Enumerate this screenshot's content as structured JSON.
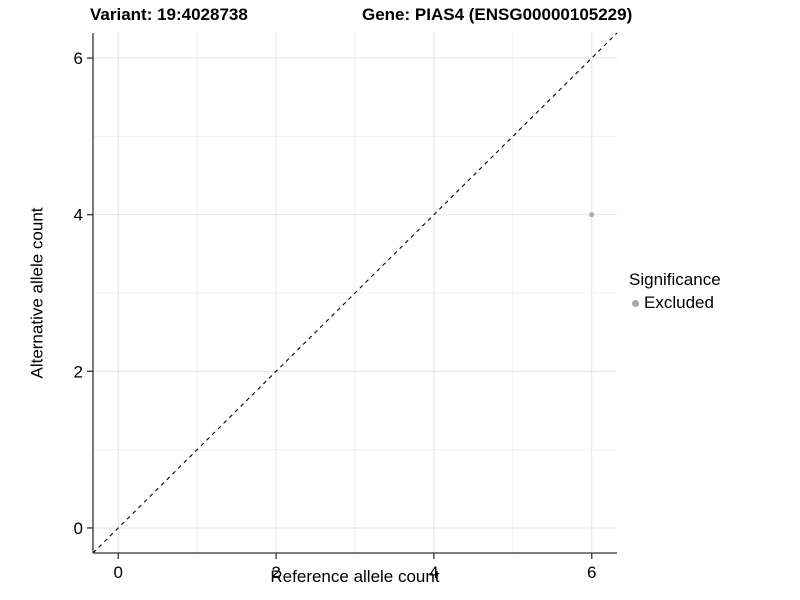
{
  "chart_data": {
    "type": "scatter",
    "titles": {
      "left": "Variant: 19:4028738",
      "right": "Gene: PIAS4 (ENSG00000105229)"
    },
    "xlabel": "Reference allele count",
    "ylabel": "Alternative allele count",
    "xlim": [
      -0.32,
      6.32
    ],
    "ylim": [
      -0.32,
      6.32
    ],
    "xticks": [
      0,
      2,
      4,
      6
    ],
    "yticks": [
      0,
      2,
      4,
      6
    ],
    "grid": {
      "on": true,
      "every": 1,
      "major_color": "#e5e5e5",
      "minor_color": "#f0f0f0"
    },
    "axis_style": {
      "line_color": "#333333",
      "tick_color": "#333333",
      "tick_length": 6,
      "label_color": "#000000"
    },
    "reference_line": {
      "type": "identity",
      "from": [
        -0.32,
        -0.32
      ],
      "to": [
        6.32,
        6.32
      ],
      "style": "dashed",
      "color": "#000000"
    },
    "series": [
      {
        "name": "Excluded",
        "color": "#aaaaaa",
        "marker_radius": 2.5,
        "points": [
          [
            6,
            4
          ]
        ]
      }
    ],
    "legend": {
      "title": "Significance",
      "position": "right",
      "items": [
        {
          "label": "Excluded",
          "color": "#aaaaaa"
        }
      ]
    }
  }
}
